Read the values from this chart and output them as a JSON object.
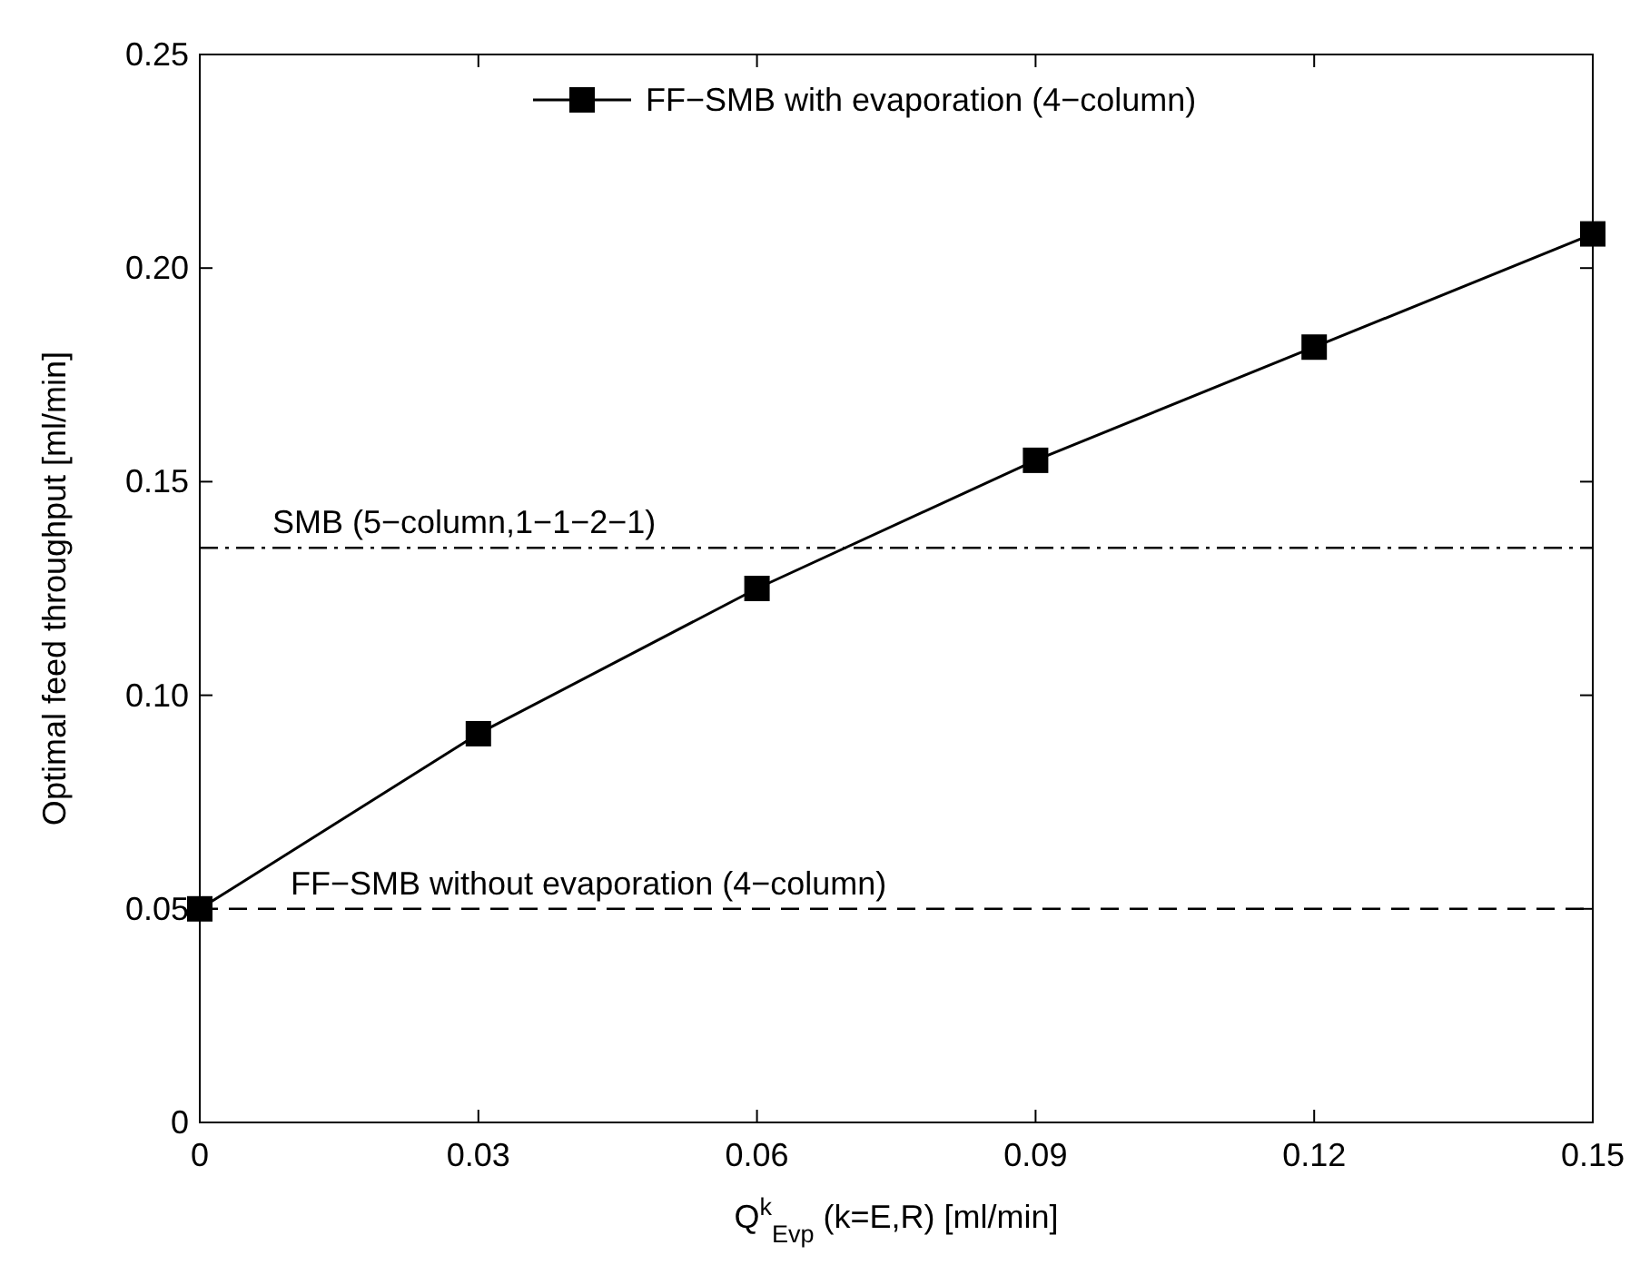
{
  "chart_data": {
    "type": "line",
    "xlabel": "Q$^{k}$$_{Evp}$ (k=E,R) [ml/min]",
    "ylabel": "Optimal feed throughput [ml/min]",
    "x": [
      0,
      0.03,
      0.06,
      0.09,
      0.12,
      0.15
    ],
    "series": [
      {
        "name": "FF−SMB with evaporation (4−column)",
        "color": "#000000",
        "values": [
          0.05,
          0.091,
          0.125,
          0.155,
          0.1815,
          0.208
        ]
      }
    ],
    "xlim": [
      0,
      0.15
    ],
    "xticks": [
      0,
      0.03,
      0.06,
      0.09,
      0.12,
      0.15
    ],
    "ylim": [
      0,
      0.25
    ],
    "yticks": [
      0,
      0.05,
      {
        "value": 0.1,
        "label": "0.10"
      },
      0.15,
      {
        "value": 0.2,
        "label": "0.20"
      },
      0.25
    ],
    "ref_lines": [
      {
        "axis": "y",
        "value": 0.1345,
        "label": "SMB (5−column,1−1−2−1)",
        "line_style": "dashdot",
        "color": "#000000"
      },
      {
        "axis": "y",
        "value": 0.05,
        "label": "FF−SMB without evaporation (4−column)",
        "line_style": "dashed",
        "color": "#000000"
      }
    ],
    "marker": "square",
    "line_style": "solid",
    "legend": "top",
    "grid": false
  }
}
